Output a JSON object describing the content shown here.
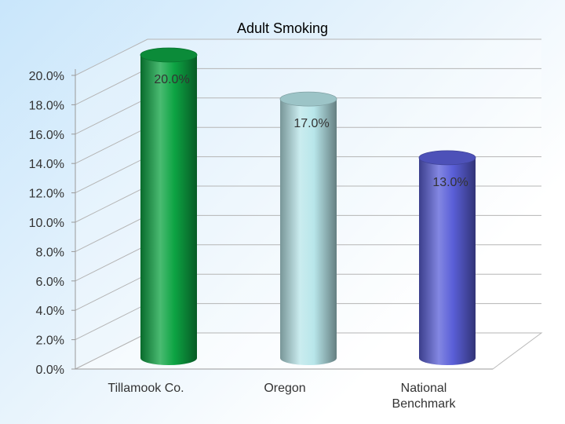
{
  "chart_data": {
    "type": "bar",
    "title": "Adult Smoking",
    "categories": [
      "Tillamook Co.",
      "Oregon",
      "National Benchmark"
    ],
    "series": [
      {
        "values": [
          20.0,
          17.0,
          13.0
        ]
      }
    ],
    "data_labels": [
      "20.0%",
      "17.0%",
      "13.0%"
    ],
    "y_ticks": [
      "0.0%",
      "2.0%",
      "4.0%",
      "6.0%",
      "8.0%",
      "10.0%",
      "12.0%",
      "14.0%",
      "16.0%",
      "18.0%",
      "20.0%"
    ],
    "ylim": [
      0,
      20
    ],
    "xlabel": "",
    "ylabel": "",
    "grid": true,
    "bar_colors": [
      "#0da443",
      "#b8e6ea",
      "#5a5fd8"
    ],
    "bar_shape": "3d-cylinder"
  }
}
